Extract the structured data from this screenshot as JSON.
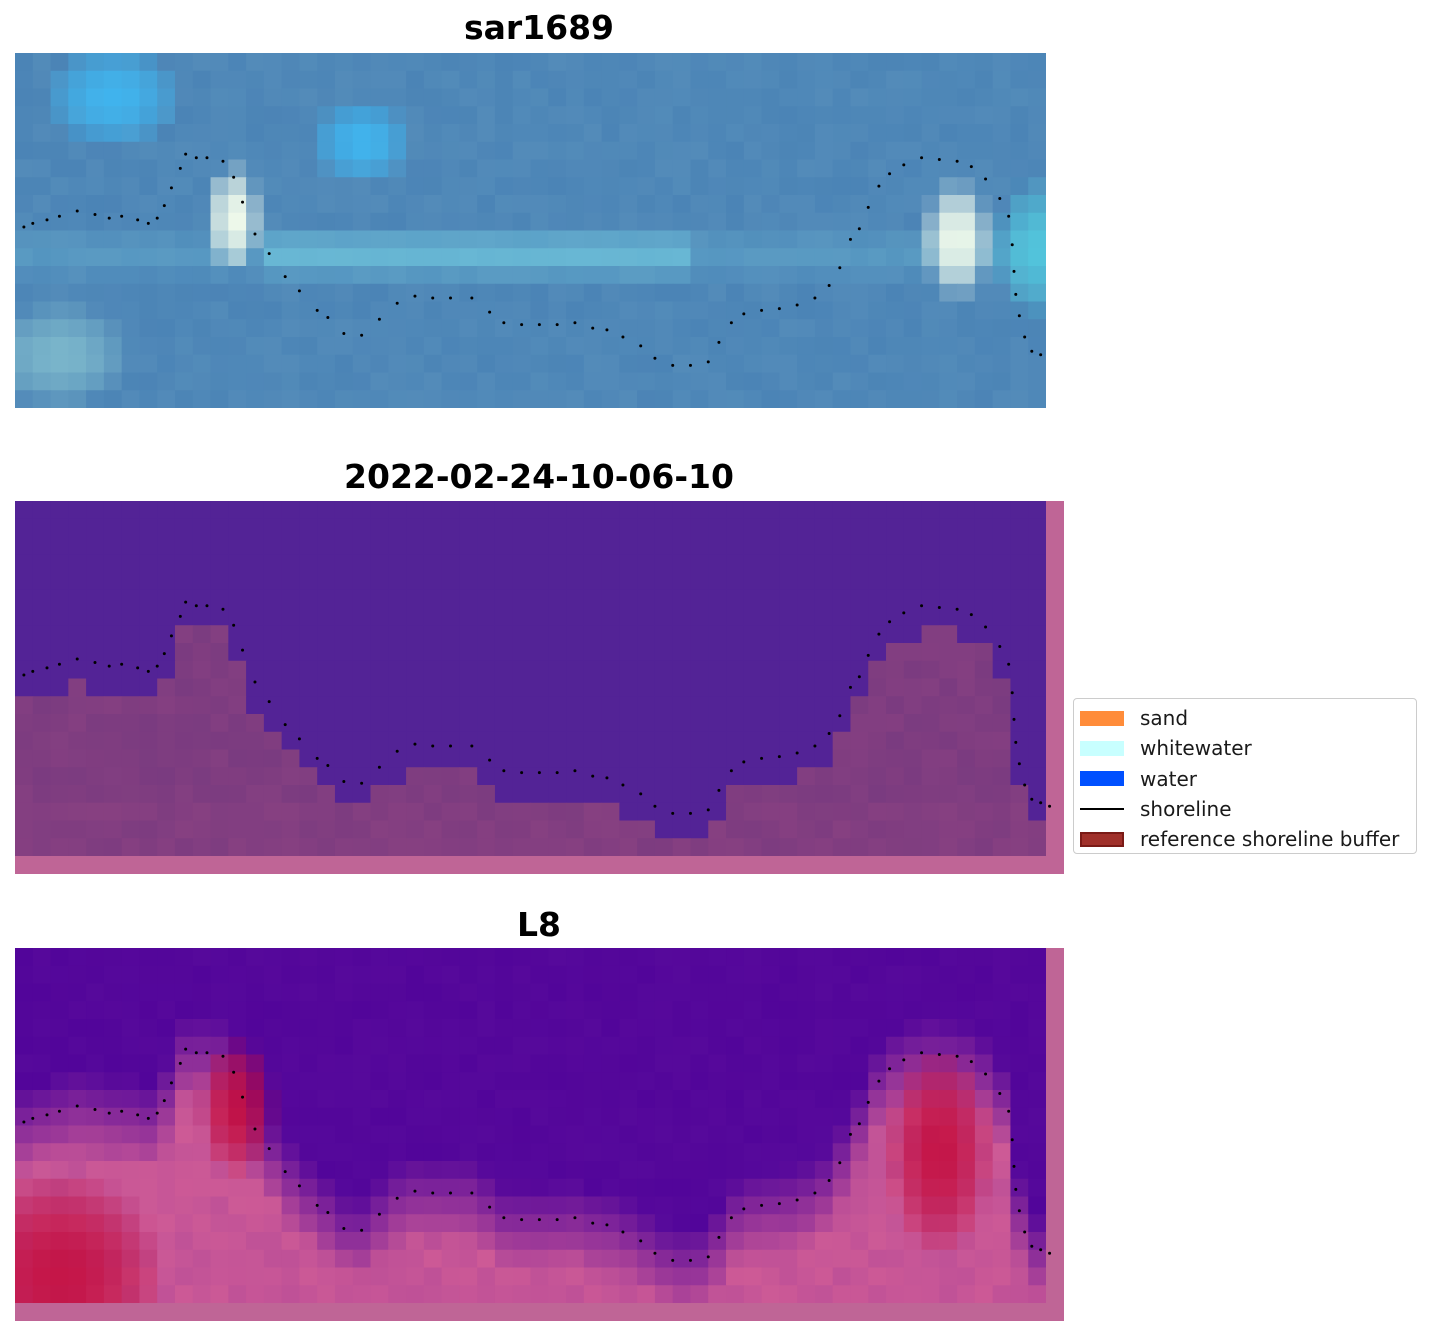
{
  "panels": [
    {
      "title": "sar1689"
    },
    {
      "title": "2022-02-24-10-06-10"
    },
    {
      "title": "L8"
    }
  ],
  "legend": {
    "placement": "center-right",
    "items": [
      {
        "label": "sand",
        "color": "#ff8c3a",
        "kind": "patch"
      },
      {
        "label": "whitewater",
        "color": "#c8ffff",
        "kind": "patch"
      },
      {
        "label": "water",
        "color": "#0050ff",
        "kind": "patch"
      },
      {
        "label": "shoreline",
        "color": "#000000",
        "kind": "line"
      },
      {
        "label": "reference shoreline buffer",
        "color": "#a0302a",
        "edge": "#7a1a16",
        "kind": "patch"
      }
    ]
  },
  "colors": {
    "rgb_base": "#4b84b6",
    "classified_water": "#532396",
    "buffer": "#bf6596",
    "l8_low": "#52059a",
    "l8_high": "#c40a3a"
  },
  "chart_data": {
    "type": "image",
    "grid": false,
    "raster": {
      "columns": 58,
      "rows": 20
    },
    "shoreline": [
      [
        0.5,
        9.8
      ],
      [
        1,
        9.6
      ],
      [
        1.8,
        9.4
      ],
      [
        2.5,
        9.2
      ],
      [
        3.5,
        8.9
      ],
      [
        4.5,
        9.1
      ],
      [
        5.3,
        9.3
      ],
      [
        6,
        9.2
      ],
      [
        6.9,
        9.4
      ],
      [
        7.5,
        9.6
      ],
      [
        8,
        9.3
      ],
      [
        8.4,
        8.6
      ],
      [
        8.8,
        7.6
      ],
      [
        9.3,
        6.5
      ],
      [
        9.6,
        5.7
      ],
      [
        10.2,
        5.9
      ],
      [
        10.8,
        5.9
      ],
      [
        11.7,
        6.1
      ],
      [
        12.3,
        7.0
      ],
      [
        12.8,
        8.4
      ],
      [
        13.5,
        10.2
      ],
      [
        14.3,
        11.3
      ],
      [
        15.2,
        12.6
      ],
      [
        16,
        13.4
      ],
      [
        17,
        14.5
      ],
      [
        17.6,
        14.9
      ],
      [
        18.5,
        15.8
      ],
      [
        19.5,
        15.9
      ],
      [
        20.5,
        15.0
      ],
      [
        21.5,
        14.1
      ],
      [
        22.5,
        13.7
      ],
      [
        23.5,
        13.8
      ],
      [
        24.5,
        13.8
      ],
      [
        25.7,
        13.8
      ],
      [
        26.7,
        14.6
      ],
      [
        27.5,
        15.2
      ],
      [
        28.5,
        15.3
      ],
      [
        29.5,
        15.3
      ],
      [
        30.5,
        15.3
      ],
      [
        31.5,
        15.2
      ],
      [
        32.5,
        15.5
      ],
      [
        33.3,
        15.6
      ],
      [
        34.2,
        16.0
      ],
      [
        35.2,
        16.5
      ],
      [
        36,
        17.2
      ],
      [
        37,
        17.6
      ],
      [
        38,
        17.6
      ],
      [
        39,
        17.4
      ],
      [
        39.6,
        16.3
      ],
      [
        40.3,
        15.2
      ],
      [
        41,
        14.7
      ],
      [
        42,
        14.5
      ],
      [
        43,
        14.4
      ],
      [
        44,
        14.2
      ],
      [
        45,
        13.8
      ],
      [
        45.8,
        13.1
      ],
      [
        46.4,
        12.1
      ],
      [
        47,
        10.5
      ],
      [
        47.5,
        9.9
      ],
      [
        48,
        8.7
      ],
      [
        48.6,
        7.5
      ],
      [
        49.2,
        6.8
      ],
      [
        50,
        6.3
      ],
      [
        51,
        5.9
      ],
      [
        52,
        6.0
      ],
      [
        53,
        6.1
      ],
      [
        53.8,
        6.4
      ],
      [
        54.6,
        7.1
      ],
      [
        55.4,
        8.2
      ],
      [
        55.9,
        9.2
      ],
      [
        56.1,
        10.8
      ],
      [
        56.2,
        12.3
      ],
      [
        56.3,
        13.6
      ],
      [
        56.5,
        14.8
      ],
      [
        56.8,
        16.0
      ],
      [
        57.2,
        16.8
      ],
      [
        57.7,
        17.0
      ],
      [
        58.2,
        17.2
      ]
    ]
  }
}
